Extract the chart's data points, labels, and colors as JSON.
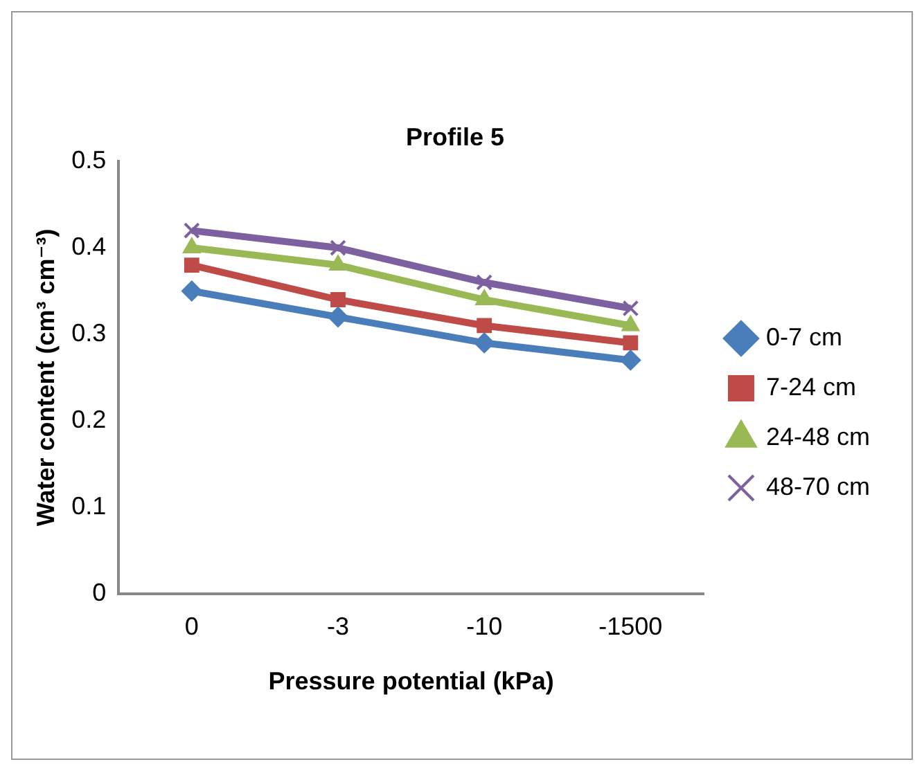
{
  "chart_data": {
    "type": "line",
    "title": "Profile 5",
    "xlabel": "Pressure potential (kPa)",
    "ylabel": "Water content (cm³ cm⁻³)",
    "categories": [
      "0",
      "-3",
      "-10",
      "-1500"
    ],
    "series": [
      {
        "name": "0-7 cm",
        "color": "#4a7ebb",
        "marker": "diamond",
        "values": [
          0.35,
          0.32,
          0.29,
          0.27
        ]
      },
      {
        "name": "7-24 cm",
        "color": "#be4b48",
        "marker": "square",
        "values": [
          0.38,
          0.34,
          0.31,
          0.29
        ]
      },
      {
        "name": "24-48 cm",
        "color": "#98b954",
        "marker": "triangle",
        "values": [
          0.4,
          0.38,
          0.34,
          0.31
        ]
      },
      {
        "name": "48-70 cm",
        "color": "#7d60a0",
        "marker": "cross",
        "values": [
          0.42,
          0.4,
          0.36,
          0.33
        ]
      }
    ],
    "ylim": [
      0,
      0.5
    ],
    "yticks": [
      0,
      0.1,
      0.2,
      0.3,
      0.4,
      0.5
    ],
    "grid": false,
    "legend": "right",
    "line_style": "solid"
  }
}
